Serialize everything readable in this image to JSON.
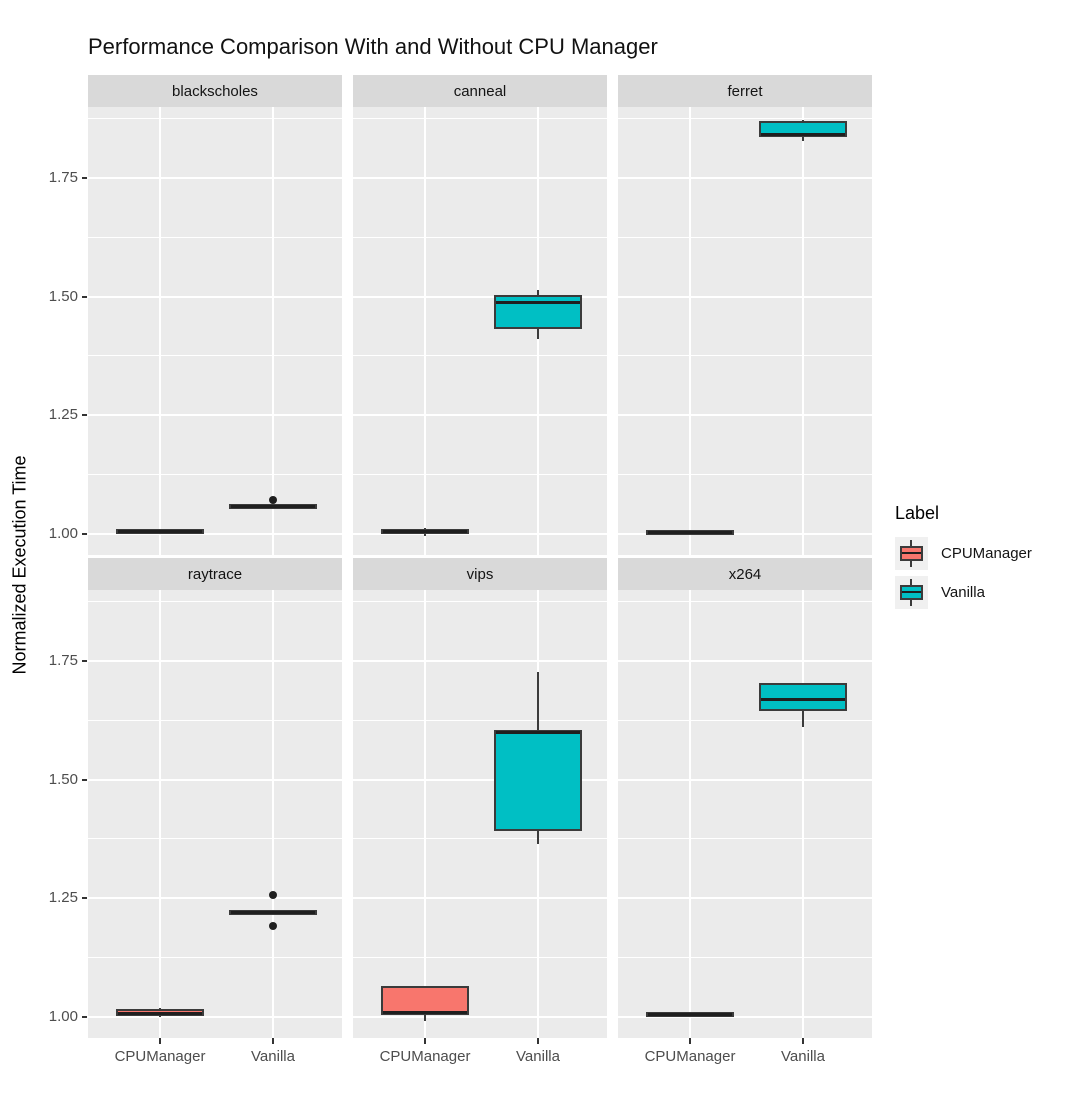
{
  "title": "Performance Comparison With and Without CPU Manager",
  "y_axis": {
    "label": "Normalized Execution Time",
    "ticks": [
      "1.00",
      "1.25",
      "1.50",
      "1.75"
    ],
    "tick_values": [
      1.0,
      1.25,
      1.5,
      1.75
    ],
    "minor_values": [
      1.125,
      1.375,
      1.625,
      1.875
    ]
  },
  "x_axis": {
    "categories": [
      "CPUManager",
      "Vanilla"
    ]
  },
  "legend": {
    "title": "Label",
    "items": [
      {
        "label": "CPUManager",
        "color": "#F8766D"
      },
      {
        "label": "Vanilla",
        "color": "#00BFC4"
      }
    ]
  },
  "colors": {
    "panel_bg": "#EBEBEB",
    "strip_bg": "#D9D9D9",
    "gridline": "#FFFFFF",
    "box_outline": "#3B3B3B",
    "axis_text": "#4D4D4D"
  },
  "chart_data": {
    "type": "boxplot",
    "title": "Performance Comparison With and Without CPU Manager",
    "ylabel": "Normalized Execution Time",
    "ylim": [
      0.955,
      1.9
    ],
    "grid": true,
    "legend_position": "right",
    "categories": [
      "CPUManager",
      "Vanilla"
    ],
    "series_colors": {
      "CPUManager": "#F8766D",
      "Vanilla": "#00BFC4"
    },
    "facets": [
      {
        "name": "blackscholes",
        "series": [
          {
            "group": "CPUManager",
            "min": 1.0,
            "q1": 1.002,
            "median": 1.005,
            "q3": 1.009,
            "max": 1.01,
            "outliers": []
          },
          {
            "group": "Vanilla",
            "min": 1.054,
            "q1": 1.055,
            "median": 1.058,
            "q3": 1.061,
            "max": 1.062,
            "outliers": [
              1.072
            ]
          }
        ]
      },
      {
        "name": "canneal",
        "series": [
          {
            "group": "CPUManager",
            "min": 0.996,
            "q1": 1.0,
            "median": 1.005,
            "q3": 1.01,
            "max": 1.013,
            "outliers": []
          },
          {
            "group": "Vanilla",
            "min": 1.41,
            "q1": 1.432,
            "median": 1.488,
            "q3": 1.503,
            "max": 1.514,
            "outliers": []
          }
        ]
      },
      {
        "name": "ferret",
        "series": [
          {
            "group": "CPUManager",
            "min": 0.999,
            "q1": 1.0,
            "median": 1.002,
            "q3": 1.004,
            "max": 1.005,
            "outliers": []
          },
          {
            "group": "Vanilla",
            "min": 1.828,
            "q1": 1.836,
            "median": 1.841,
            "q3": 1.871,
            "max": 1.872,
            "outliers": []
          }
        ]
      },
      {
        "name": "raytrace",
        "series": [
          {
            "group": "CPUManager",
            "min": 0.999,
            "q1": 1.002,
            "median": 1.006,
            "q3": 1.017,
            "max": 1.019,
            "outliers": []
          },
          {
            "group": "Vanilla",
            "min": 1.218,
            "q1": 1.218,
            "median": 1.219,
            "q3": 1.22,
            "max": 1.221,
            "outliers": [
              1.256,
              1.192
            ]
          }
        ]
      },
      {
        "name": "vips",
        "series": [
          {
            "group": "CPUManager",
            "min": 0.99,
            "q1": 1.003,
            "median": 1.009,
            "q3": 1.064,
            "max": 1.065,
            "outliers": []
          },
          {
            "group": "Vanilla",
            "min": 1.364,
            "q1": 1.391,
            "median": 1.6,
            "q3": 1.605,
            "max": 1.728,
            "outliers": []
          }
        ]
      },
      {
        "name": "x264",
        "series": [
          {
            "group": "CPUManager",
            "min": 1.0,
            "q1": 1.002,
            "median": 1.005,
            "q3": 1.008,
            "max": 1.009,
            "outliers": []
          },
          {
            "group": "Vanilla",
            "min": 1.61,
            "q1": 1.645,
            "median": 1.668,
            "q3": 1.703,
            "max": 1.704,
            "outliers": []
          }
        ]
      }
    ]
  }
}
